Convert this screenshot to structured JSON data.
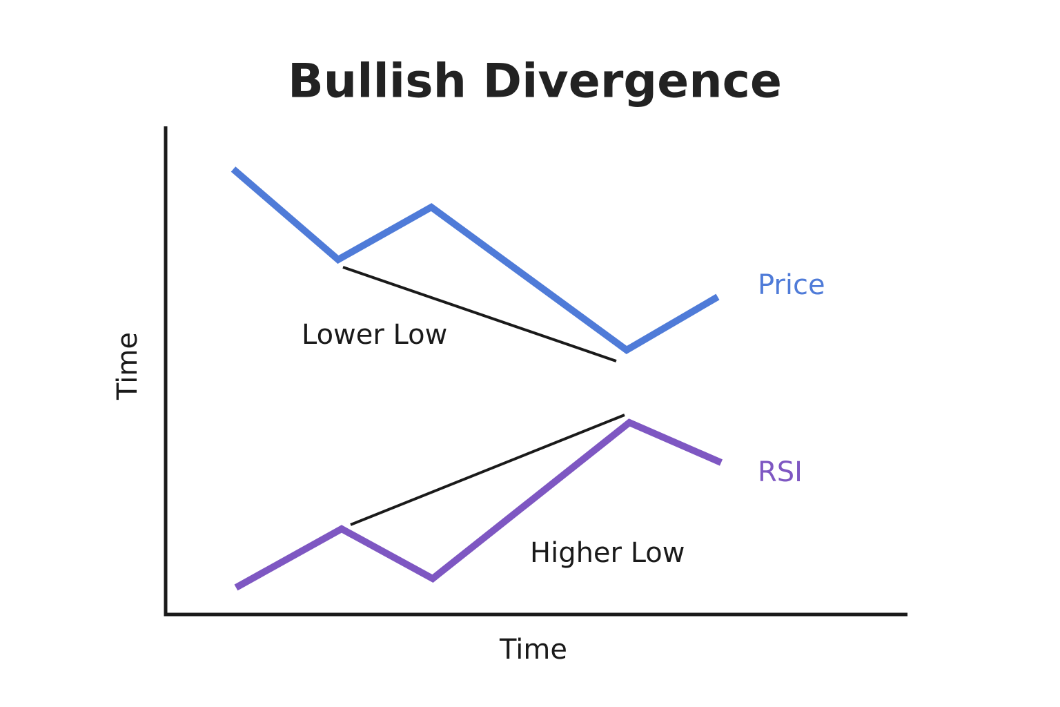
{
  "title": "Bullish Divergence",
  "x_axis_label": "Time",
  "y_axis_label": "Time",
  "price_label": "Price",
  "rsi_label": "RSI",
  "annotations": {
    "price": "Lower Low",
    "rsi": "Higher Low"
  }
}
